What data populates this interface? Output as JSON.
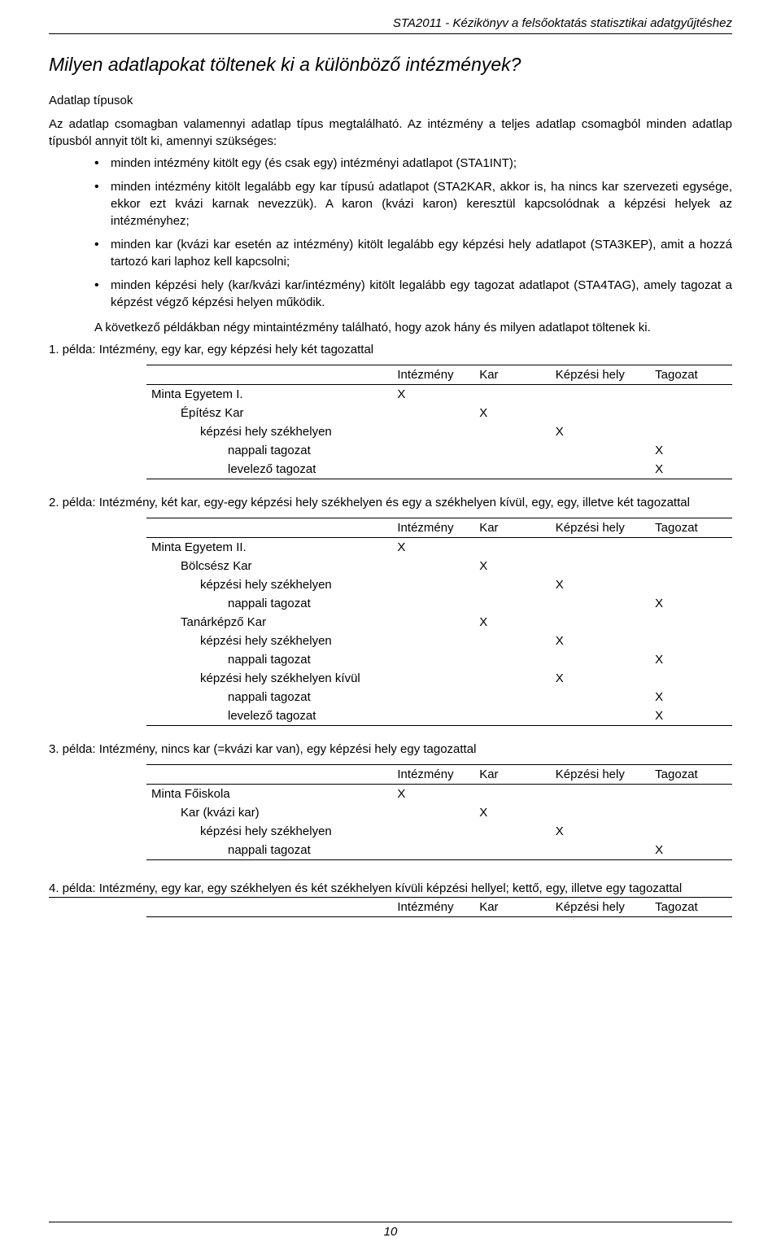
{
  "doc_header": "STA2011 - Kézikönyv a felsőoktatás statisztikai adatgyűjtéshez",
  "title": "Milyen adatlapokat töltenek ki a különböző intézmények?",
  "subhead": "Adatlap típusok",
  "intro1": "Az adatlap csomagban valamennyi adatlap típus megtalálható. Az intézmény a teljes adatlap csomagból minden adatlap típusból annyit tölt ki, amennyi szükséges:",
  "b1": "minden intézmény kitölt egy (és csak egy) intézményi adatlapot (STA1INT);",
  "b2": "minden intézmény kitölt legalább egy kar típusú adatlapot (STA2KAR, akkor is, ha nincs kar szervezeti egysége, ekkor ezt kvázi karnak nevezzük). A karon (kvázi karon) keresztül kapcsolódnak a képzési helyek az intézményhez;",
  "b3": "minden kar (kvázi kar esetén az intézmény) kitölt legalább egy képzési hely adatlapot (STA3KEP), amit a hozzá tartozó kari laphoz kell kapcsolni;",
  "b4": "minden képzési hely (kar/kvázi kar/intézmény) kitölt legalább egy tagozat adatlapot (STA4TAG), amely tagozat a képzést végző képzési helyen működik.",
  "after_bullets": "A következő példákban négy mintaintézmény található, hogy azok hány és milyen adatlapot töltenek ki.",
  "ex1_label": "1. példa: Intézmény, egy kar, egy képzési hely két tagozattal",
  "ex2_label": "2. példa: Intézmény, két kar, egy-egy képzési hely székhelyen és egy a székhelyen kívül, egy, egy, illetve két tagozattal",
  "ex3_label": "3. példa: Intézmény, nincs kar (=kvázi kar van), egy képzési hely egy tagozattal",
  "ex4_label": "4. példa: Intézmény, egy kar, egy székhelyen és két székhelyen kívüli képzési hellyel; kettő, egy, illetve egy tagozattal",
  "cols": {
    "c1": "Intézmény",
    "c2": "Kar",
    "c3": "Képzési hely",
    "c4": "Tagozat"
  },
  "t1": {
    "r1": {
      "name": "Minta Egyetem I.",
      "a": "X",
      "b": "",
      "c": "",
      "d": ""
    },
    "r2": {
      "name": "Építész Kar",
      "a": "",
      "b": "X",
      "c": "",
      "d": ""
    },
    "r3": {
      "name": "képzési hely székhelyen",
      "a": "",
      "b": "",
      "c": "X",
      "d": ""
    },
    "r4": {
      "name": "nappali tagozat",
      "a": "",
      "b": "",
      "c": "",
      "d": "X"
    },
    "r5": {
      "name": "levelező tagozat",
      "a": "",
      "b": "",
      "c": "",
      "d": "X"
    }
  },
  "t2": {
    "r1": {
      "name": "Minta Egyetem II.",
      "a": "X",
      "b": "",
      "c": "",
      "d": ""
    },
    "r2": {
      "name": "Bölcsész Kar",
      "a": "",
      "b": "X",
      "c": "",
      "d": ""
    },
    "r3": {
      "name": "képzési hely székhelyen",
      "a": "",
      "b": "",
      "c": "X",
      "d": ""
    },
    "r4": {
      "name": "nappali tagozat",
      "a": "",
      "b": "",
      "c": "",
      "d": "X"
    },
    "r5": {
      "name": "Tanárképző Kar",
      "a": "",
      "b": "X",
      "c": "",
      "d": ""
    },
    "r6": {
      "name": "képzési hely székhelyen",
      "a": "",
      "b": "",
      "c": "X",
      "d": ""
    },
    "r7": {
      "name": "nappali tagozat",
      "a": "",
      "b": "",
      "c": "",
      "d": "X"
    },
    "r8": {
      "name": "képzési hely székhelyen kívül",
      "a": "",
      "b": "",
      "c": "X",
      "d": ""
    },
    "r9": {
      "name": "nappali tagozat",
      "a": "",
      "b": "",
      "c": "",
      "d": "X"
    },
    "r10": {
      "name": "levelező tagozat",
      "a": "",
      "b": "",
      "c": "",
      "d": "X"
    }
  },
  "t3": {
    "r1": {
      "name": "Minta Főiskola",
      "a": "X",
      "b": "",
      "c": "",
      "d": ""
    },
    "r2": {
      "name": "Kar (kvázi kar)",
      "a": "",
      "b": "X",
      "c": "",
      "d": ""
    },
    "r3": {
      "name": "képzési hely székhelyen",
      "a": "",
      "b": "",
      "c": "X",
      "d": ""
    },
    "r4": {
      "name": "nappali tagozat",
      "a": "",
      "b": "",
      "c": "",
      "d": "X"
    }
  },
  "page_number": "10"
}
